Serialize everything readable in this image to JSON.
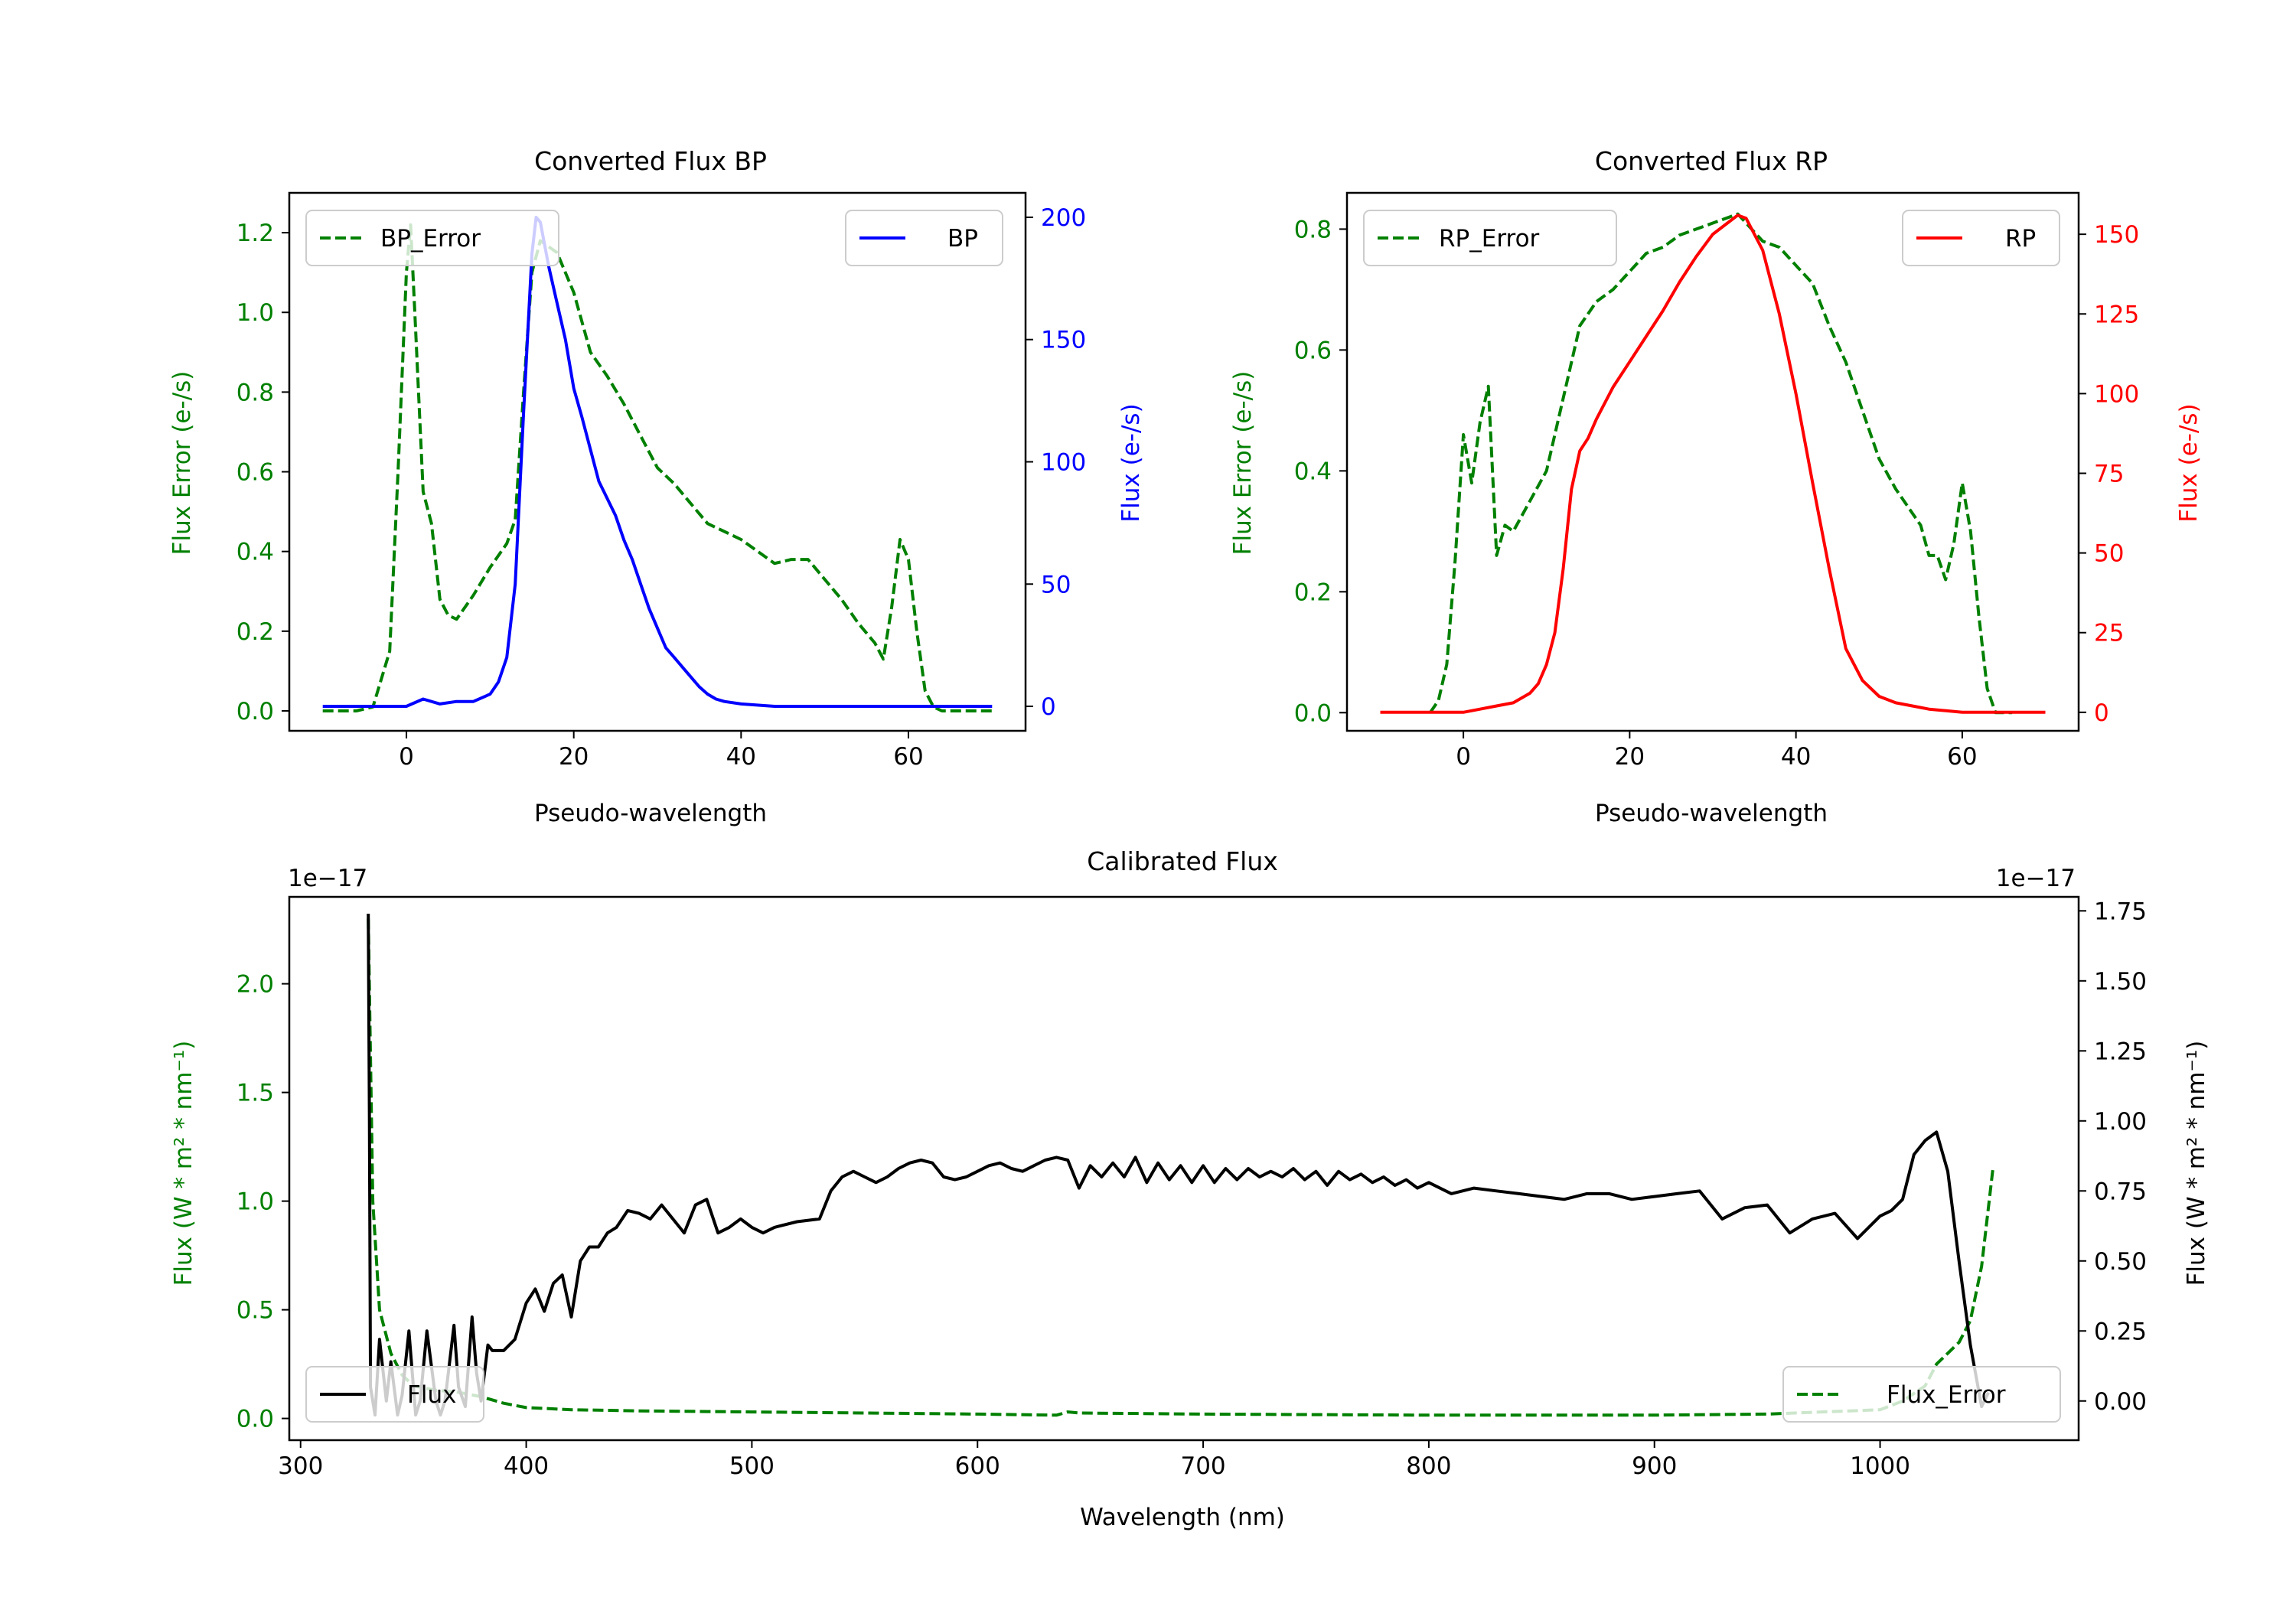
{
  "chart_data": [
    {
      "id": "bp",
      "type": "line",
      "title": "Converted Flux BP",
      "xlabel": "Pseudo-wavelength",
      "ylabel_left": "Flux Error (e-/s)",
      "ylabel_right": "Flux (e-/s)",
      "xlim": [
        -14,
        74
      ],
      "ylim_left": [
        -0.05,
        1.3
      ],
      "ylim_right": [
        -10,
        210
      ],
      "xticks": [
        0,
        20,
        40,
        60
      ],
      "yticks_left": [
        0.0,
        0.2,
        0.4,
        0.6,
        0.8,
        1.0,
        1.2
      ],
      "yticks_right": [
        0,
        50,
        100,
        150,
        200
      ],
      "left_color": "#008000",
      "right_color": "#0000ff",
      "series": [
        {
          "name": "BP_Error",
          "axis": "left",
          "style": "dashed",
          "color": "#008000",
          "x": [
            -10,
            -6,
            -4,
            -2,
            -1,
            0,
            0.5,
            1,
            2,
            3,
            4,
            5,
            6,
            8,
            10,
            12,
            13,
            14,
            15,
            16,
            18,
            20,
            22,
            24,
            26,
            28,
            30,
            32,
            34,
            36,
            38,
            40,
            42,
            44,
            46,
            48,
            50,
            52,
            54,
            56,
            57,
            58,
            59,
            60,
            61,
            62,
            63,
            64,
            66,
            70
          ],
          "y": [
            0.0,
            0.0,
            0.01,
            0.15,
            0.6,
            1.1,
            1.22,
            1.0,
            0.55,
            0.47,
            0.28,
            0.24,
            0.23,
            0.29,
            0.36,
            0.42,
            0.48,
            0.8,
            1.1,
            1.18,
            1.15,
            1.05,
            0.9,
            0.84,
            0.77,
            0.69,
            0.61,
            0.57,
            0.52,
            0.47,
            0.45,
            0.43,
            0.4,
            0.37,
            0.38,
            0.38,
            0.33,
            0.28,
            0.22,
            0.17,
            0.13,
            0.26,
            0.43,
            0.38,
            0.2,
            0.05,
            0.01,
            0.0,
            0.0,
            0.0
          ]
        },
        {
          "name": "BP",
          "axis": "right",
          "style": "solid",
          "color": "#0000ff",
          "x": [
            -10,
            -4,
            0,
            2,
            4,
            6,
            8,
            10,
            11,
            12,
            13,
            14,
            15,
            15.5,
            16,
            17,
            18,
            19,
            20,
            21,
            22,
            23,
            24,
            25,
            26,
            27,
            28,
            29,
            30,
            31,
            32,
            33,
            34,
            35,
            36,
            37,
            38,
            40,
            44,
            50,
            56,
            60,
            64,
            70
          ],
          "y": [
            0,
            0,
            0,
            3,
            1,
            2,
            2,
            5,
            10,
            20,
            50,
            120,
            185,
            200,
            198,
            180,
            165,
            150,
            130,
            118,
            105,
            92,
            85,
            78,
            68,
            60,
            50,
            40,
            32,
            24,
            20,
            16,
            12,
            8,
            5,
            3,
            2,
            1,
            0,
            0,
            0,
            0,
            0,
            0
          ]
        }
      ],
      "legend": [
        {
          "label": "BP_Error",
          "location": "upper left"
        },
        {
          "label": "BP",
          "location": "upper right"
        }
      ]
    },
    {
      "id": "rp",
      "type": "line",
      "title": "Converted Flux RP",
      "xlabel": "Pseudo-wavelength",
      "ylabel_left": "Flux Error (e-/s)",
      "ylabel_right": "Flux (e-/s)",
      "xlim": [
        -14,
        74
      ],
      "ylim_left": [
        -0.03,
        0.86
      ],
      "ylim_right": [
        -5.8,
        163
      ],
      "xticks": [
        0,
        20,
        40,
        60
      ],
      "yticks_left": [
        0.0,
        0.2,
        0.4,
        0.6,
        0.8
      ],
      "yticks_right": [
        0,
        25,
        50,
        75,
        100,
        125,
        150
      ],
      "left_color": "#008000",
      "right_color": "#ff0000",
      "series": [
        {
          "name": "RP_Error",
          "axis": "left",
          "style": "dashed",
          "color": "#008000",
          "x": [
            -4,
            -3,
            -2,
            -1,
            0,
            1,
            2,
            3,
            4,
            5,
            6,
            8,
            10,
            12,
            14,
            16,
            18,
            20,
            22,
            24,
            26,
            28,
            30,
            32,
            33,
            34,
            36,
            38,
            40,
            42,
            44,
            46,
            48,
            50,
            52,
            54,
            55,
            56,
            57,
            58,
            59,
            60,
            61,
            62,
            63,
            64,
            66
          ],
          "y": [
            0.0,
            0.02,
            0.08,
            0.25,
            0.46,
            0.38,
            0.48,
            0.54,
            0.26,
            0.31,
            0.3,
            0.35,
            0.4,
            0.52,
            0.64,
            0.68,
            0.7,
            0.73,
            0.76,
            0.77,
            0.79,
            0.8,
            0.81,
            0.82,
            0.825,
            0.81,
            0.78,
            0.77,
            0.74,
            0.71,
            0.64,
            0.58,
            0.5,
            0.42,
            0.37,
            0.33,
            0.31,
            0.26,
            0.26,
            0.22,
            0.28,
            0.38,
            0.3,
            0.16,
            0.04,
            0.0,
            0.0
          ]
        },
        {
          "name": "RP",
          "axis": "right",
          "style": "solid",
          "color": "#ff0000",
          "x": [
            -10,
            -4,
            0,
            2,
            4,
            6,
            8,
            9,
            10,
            11,
            12,
            13,
            14,
            15,
            16,
            18,
            20,
            22,
            24,
            26,
            28,
            30,
            32,
            33,
            34,
            36,
            38,
            40,
            42,
            44,
            46,
            48,
            50,
            52,
            54,
            56,
            60,
            64,
            70
          ],
          "y": [
            0,
            0,
            0,
            1,
            2,
            3,
            6,
            9,
            15,
            25,
            45,
            70,
            82,
            86,
            92,
            102,
            110,
            118,
            126,
            135,
            143,
            150,
            154,
            156,
            155,
            145,
            125,
            100,
            72,
            45,
            20,
            10,
            5,
            3,
            2,
            1,
            0,
            0,
            0
          ]
        }
      ],
      "legend": [
        {
          "label": "RP_Error",
          "location": "upper left"
        },
        {
          "label": "RP",
          "location": "upper right"
        }
      ]
    },
    {
      "id": "cal",
      "type": "line",
      "title": "Calibrated Flux",
      "xlabel": "Wavelength (nm)",
      "ylabel_left": "Flux (W * m² * nm⁻¹)",
      "ylabel_right": "Flux (W * m² * nm⁻¹)",
      "offset_left": "1e−17",
      "offset_right": "1e−17",
      "xlim": [
        295,
        1088
      ],
      "ylim_left": [
        -0.1,
        2.4
      ],
      "ylim_right": [
        -0.14,
        1.8
      ],
      "xticks": [
        300,
        400,
        500,
        600,
        700,
        800,
        900,
        1000
      ],
      "yticks_left": [
        0.0,
        0.5,
        1.0,
        1.5,
        2.0
      ],
      "yticks_right": [
        0.0,
        0.25,
        0.5,
        0.75,
        1.0,
        1.25,
        1.5,
        1.75
      ],
      "left_color": "#008000",
      "right_color": "#000000",
      "series": [
        {
          "name": "Flux_Error",
          "axis": "left",
          "style": "dashed",
          "color": "#008000",
          "x": [
            330,
            332,
            335,
            340,
            345,
            350,
            360,
            370,
            380,
            390,
            400,
            420,
            450,
            500,
            550,
            600,
            635,
            640,
            645,
            700,
            800,
            900,
            950,
            1000,
            1010,
            1020,
            1025,
            1030,
            1035,
            1040,
            1045,
            1050
          ],
          "y": [
            2.3,
            1.0,
            0.5,
            0.3,
            0.2,
            0.15,
            0.13,
            0.12,
            0.1,
            0.07,
            0.05,
            0.04,
            0.035,
            0.03,
            0.025,
            0.02,
            0.015,
            0.03,
            0.025,
            0.02,
            0.015,
            0.015,
            0.02,
            0.04,
            0.08,
            0.15,
            0.25,
            0.3,
            0.35,
            0.45,
            0.7,
            1.15
          ]
        },
        {
          "name": "Flux",
          "axis": "right",
          "style": "solid",
          "color": "#000000",
          "x": [
            330,
            330.5,
            331,
            333,
            335,
            338,
            340,
            343,
            345,
            348,
            351,
            353,
            356,
            360,
            362,
            364,
            368,
            370,
            373,
            376,
            378,
            380,
            383,
            385,
            390,
            395,
            400,
            404,
            408,
            412,
            416,
            420,
            424,
            428,
            432,
            436,
            440,
            445,
            450,
            455,
            460,
            465,
            470,
            475,
            480,
            485,
            490,
            495,
            500,
            505,
            510,
            520,
            530,
            535,
            540,
            545,
            550,
            555,
            560,
            565,
            570,
            575,
            580,
            585,
            590,
            595,
            600,
            605,
            610,
            615,
            620,
            625,
            630,
            635,
            640,
            645,
            650,
            655,
            660,
            665,
            670,
            675,
            680,
            685,
            690,
            695,
            700,
            705,
            710,
            715,
            720,
            725,
            730,
            735,
            740,
            745,
            750,
            755,
            760,
            765,
            770,
            775,
            780,
            785,
            790,
            795,
            800,
            810,
            820,
            830,
            840,
            850,
            860,
            870,
            880,
            890,
            900,
            910,
            920,
            930,
            940,
            950,
            960,
            970,
            980,
            990,
            1000,
            1005,
            1010,
            1015,
            1020,
            1025,
            1030,
            1035,
            1040,
            1045,
            1048
          ],
          "y": [
            1.74,
            1.0,
            0.05,
            -0.05,
            0.22,
            0.0,
            0.14,
            -0.05,
            0.02,
            0.25,
            -0.05,
            0.0,
            0.25,
            0.0,
            -0.05,
            0.0,
            0.27,
            0.05,
            -0.02,
            0.3,
            0.1,
            0.0,
            0.2,
            0.18,
            0.18,
            0.22,
            0.35,
            0.4,
            0.32,
            0.42,
            0.45,
            0.3,
            0.5,
            0.55,
            0.55,
            0.6,
            0.62,
            0.68,
            0.67,
            0.65,
            0.7,
            0.65,
            0.6,
            0.7,
            0.72,
            0.6,
            0.62,
            0.65,
            0.62,
            0.6,
            0.62,
            0.64,
            0.65,
            0.75,
            0.8,
            0.82,
            0.8,
            0.78,
            0.8,
            0.83,
            0.85,
            0.86,
            0.85,
            0.8,
            0.79,
            0.8,
            0.82,
            0.84,
            0.85,
            0.83,
            0.82,
            0.84,
            0.86,
            0.87,
            0.86,
            0.76,
            0.84,
            0.8,
            0.85,
            0.8,
            0.87,
            0.78,
            0.85,
            0.79,
            0.84,
            0.78,
            0.84,
            0.78,
            0.83,
            0.79,
            0.83,
            0.8,
            0.82,
            0.8,
            0.83,
            0.79,
            0.82,
            0.77,
            0.82,
            0.79,
            0.81,
            0.78,
            0.8,
            0.77,
            0.79,
            0.76,
            0.78,
            0.74,
            0.76,
            0.75,
            0.74,
            0.73,
            0.72,
            0.74,
            0.74,
            0.72,
            0.73,
            0.74,
            0.75,
            0.65,
            0.69,
            0.7,
            0.6,
            0.65,
            0.67,
            0.58,
            0.66,
            0.68,
            0.72,
            0.88,
            0.93,
            0.96,
            0.82,
            0.5,
            0.2,
            -0.02,
            0.03
          ]
        }
      ],
      "legend": [
        {
          "label": "Flux",
          "location": "lower left"
        },
        {
          "label": "Flux_Error",
          "location": "lower right"
        }
      ]
    }
  ]
}
